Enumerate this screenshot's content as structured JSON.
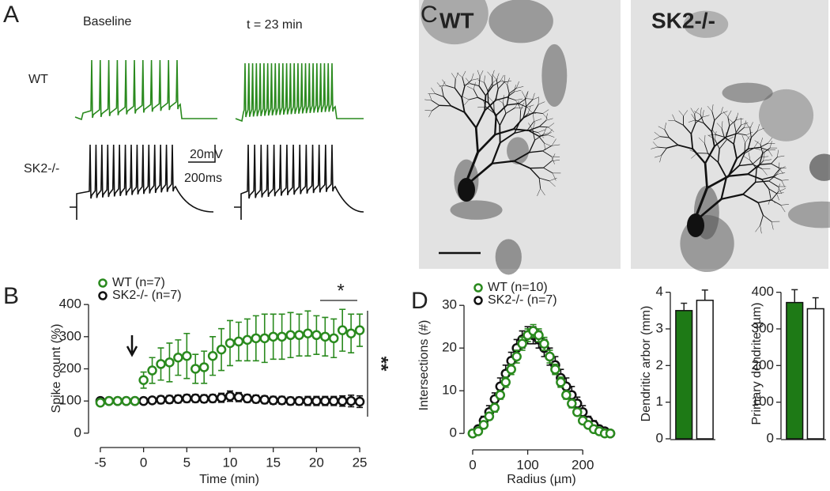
{
  "panel_a": {
    "letter": "A",
    "baseline": "Baseline",
    "later": "t = 23 min",
    "wt": "WT",
    "sk2": "SK2-/-",
    "scale_v": "20mV",
    "scale_t": "200ms"
  },
  "panel_c": {
    "letter": "C",
    "wt": "WT",
    "sk2": "SK2-/-"
  },
  "chart_data": [
    {
      "type": "scatter",
      "panel_label": "B",
      "xlabel": "Time (min)",
      "ylabel": "Spike count (%)",
      "x": [
        -5,
        -4,
        -3,
        -2,
        -1,
        0,
        1,
        2,
        3,
        4,
        5,
        6,
        7,
        8,
        9,
        10,
        11,
        12,
        13,
        14,
        15,
        16,
        17,
        18,
        19,
        20,
        21,
        22,
        23,
        24,
        25
      ],
      "series": [
        {
          "name": "SK2-/- (n=7)",
          "color": "#111111",
          "values": [
            100,
            100,
            100,
            100,
            100,
            100,
            102,
            104,
            105,
            106,
            108,
            108,
            107,
            108,
            110,
            115,
            112,
            108,
            106,
            104,
            102,
            102,
            100,
            100,
            100,
            100,
            100,
            100,
            100,
            100,
            98
          ],
          "errors": [
            10,
            8,
            8,
            8,
            8,
            10,
            10,
            12,
            12,
            12,
            12,
            12,
            12,
            12,
            14,
            16,
            14,
            12,
            12,
            12,
            12,
            12,
            12,
            12,
            14,
            14,
            14,
            14,
            16,
            18,
            18
          ]
        },
        {
          "name": "WT (n=7)",
          "color": "#2a8a1e",
          "values": [
            95,
            100,
            100,
            100,
            100,
            165,
            195,
            215,
            220,
            235,
            240,
            200,
            205,
            240,
            260,
            280,
            285,
            290,
            295,
            295,
            300,
            300,
            305,
            305,
            310,
            305,
            300,
            295,
            320,
            310,
            320
          ],
          "errors": [
            10,
            8,
            8,
            8,
            8,
            25,
            40,
            50,
            60,
            55,
            70,
            45,
            50,
            60,
            65,
            70,
            60,
            65,
            70,
            75,
            70,
            70,
            70,
            65,
            70,
            60,
            60,
            60,
            65,
            60,
            50
          ]
        }
      ],
      "xlim": [
        -6,
        26
      ],
      "xticks": [
        -5,
        0,
        5,
        10,
        15,
        20,
        25
      ],
      "ylim": [
        -20,
        420
      ],
      "yticks": [
        0,
        100,
        200,
        300,
        400
      ],
      "annotations": [
        "*",
        "**"
      ]
    },
    {
      "type": "scatter",
      "panel_label": "D",
      "xlabel": "Radius (µm)",
      "ylabel": "Intersections (#)",
      "x": [
        0,
        10,
        20,
        30,
        40,
        50,
        60,
        70,
        80,
        90,
        100,
        110,
        120,
        130,
        140,
        150,
        160,
        170,
        180,
        190,
        200,
        210,
        220,
        230,
        240,
        250
      ],
      "series": [
        {
          "name": "SK2-/- (n=7)",
          "color": "#111111",
          "values": [
            0,
            1,
            3,
            5,
            8,
            11,
            14,
            17,
            20,
            22,
            23,
            23,
            22,
            20,
            18,
            16,
            13,
            11,
            9,
            7,
            5,
            3,
            2,
            1,
            0.5,
            0
          ],
          "errors": [
            0,
            0.5,
            1,
            1.5,
            1.5,
            2,
            2,
            2,
            2,
            2,
            2,
            2,
            2,
            2,
            2,
            2,
            2,
            2,
            2,
            1.5,
            1.5,
            1,
            1,
            0.5,
            0.5,
            0
          ]
        },
        {
          "name": "WT (n=10)",
          "color": "#2a8a1e",
          "values": [
            0,
            0.5,
            2,
            4,
            6,
            9,
            12,
            15,
            18,
            21,
            23,
            24,
            23,
            21,
            18,
            15,
            12,
            9,
            7,
            5,
            3,
            2,
            1,
            0.5,
            0,
            0
          ],
          "errors": [
            0,
            0.3,
            0.5,
            0.8,
            1,
            1,
            1.2,
            1.2,
            1.5,
            1.5,
            1.5,
            1.5,
            1.5,
            1.5,
            1.5,
            1.2,
            1.2,
            1,
            1,
            0.8,
            0.5,
            0.5,
            0.3,
            0.3,
            0,
            0
          ]
        }
      ],
      "xlim": [
        -10,
        260
      ],
      "xticks": [
        0,
        100,
        200
      ],
      "ylim": [
        -2,
        33
      ],
      "yticks": [
        0,
        10,
        20,
        30
      ]
    },
    {
      "type": "bar",
      "ylabel": "Dendritic arbor (mm)",
      "categories": [
        null,
        null
      ],
      "values": [
        3.5,
        3.78
      ],
      "errors": [
        0.2,
        0.28
      ],
      "colors": [
        "#1e7a16",
        "#ffffff"
      ],
      "ylim": [
        0,
        4.1
      ],
      "yticks": [
        0,
        1,
        2,
        3,
        4
      ]
    },
    {
      "type": "bar",
      "ylabel": "Primary dendrite (µm)",
      "categories": [
        null,
        null
      ],
      "values": [
        372,
        355
      ],
      "errors": [
        35,
        30
      ],
      "colors": [
        "#1e7a16",
        "#ffffff"
      ],
      "ylim": [
        0,
        410
      ],
      "yticks": [
        0,
        100,
        200,
        300,
        400
      ]
    }
  ]
}
